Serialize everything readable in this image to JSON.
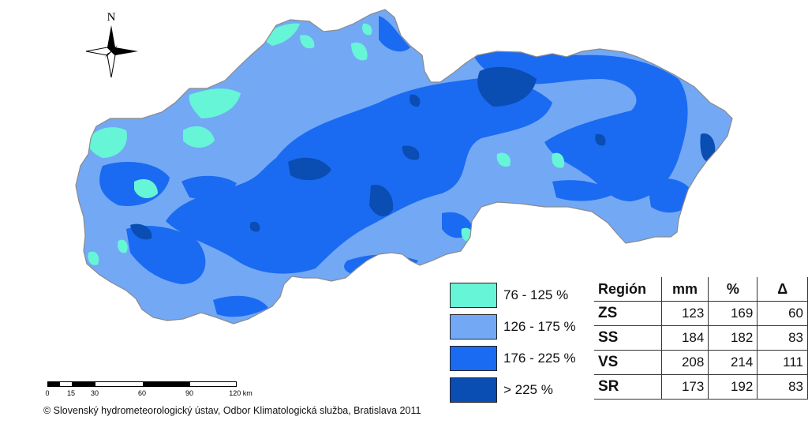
{
  "map": {
    "north_label": "N",
    "colors": {
      "c76_125": "#66F5D6",
      "c126_175": "#73A8F5",
      "c176_225": "#1A6BF2",
      "c225": "#0A4DB3",
      "background": "#ffffff"
    },
    "icon": "compass-rose-icon"
  },
  "legend": {
    "items": [
      {
        "label": "76 - 125 %",
        "color": "#66F5D6"
      },
      {
        "label": "126 - 175 %",
        "color": "#73A8F5"
      },
      {
        "label": "176 - 225 %",
        "color": "#1A6BF2"
      },
      {
        "label": "> 225 %",
        "color": "#0A4DB3"
      }
    ]
  },
  "table": {
    "headers": [
      "Región",
      "mm",
      "%",
      "Δ"
    ],
    "rows": [
      [
        "ZS",
        "123",
        "169",
        "60"
      ],
      [
        "SS",
        "184",
        "182",
        "83"
      ],
      [
        "VS",
        "208",
        "214",
        "111"
      ],
      [
        "SR",
        "173",
        "192",
        "83"
      ]
    ]
  },
  "scale": {
    "ticks": [
      "0",
      "15",
      "30",
      "60",
      "90",
      "120 km"
    ]
  },
  "footer": {
    "copyright": "© Slovenský hydrometeorologický ústav, Odbor Klimatologická služba, Bratislava 2011"
  }
}
